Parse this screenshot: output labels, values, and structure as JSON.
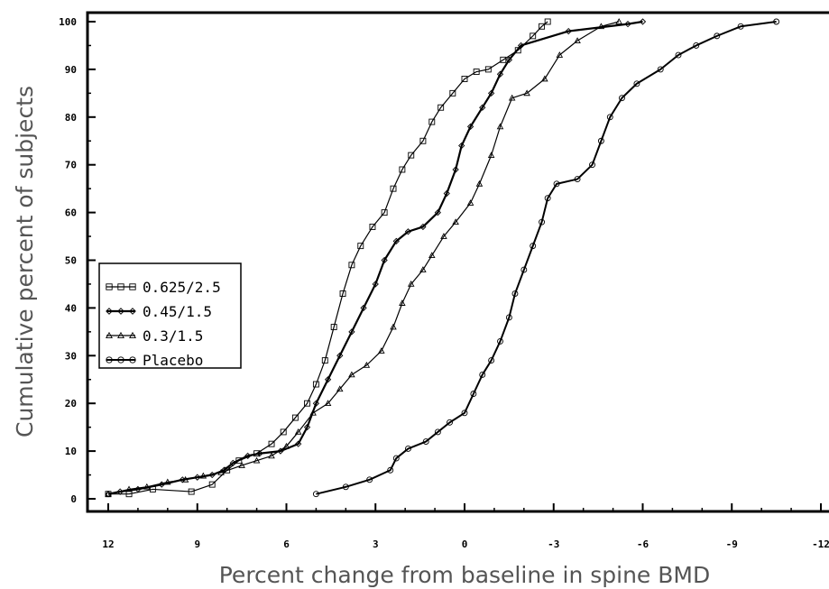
{
  "chart_data": {
    "type": "line",
    "title": "",
    "xlabel": "Percent change from baseline in spine BMD",
    "ylabel": "Cumulative percent of subjects",
    "xlim": [
      12,
      -12
    ],
    "ylim": [
      0,
      100
    ],
    "x_reversed": true,
    "xticks": [
      12,
      9,
      6,
      3,
      0,
      -3,
      -6,
      -9,
      -12
    ],
    "xtick_labels": [
      "12",
      "9",
      "6",
      "3",
      "0",
      "-3",
      "-6",
      "-9",
      "-12"
    ],
    "yticks": [
      0,
      10,
      20,
      30,
      40,
      50,
      60,
      70,
      80,
      90,
      100
    ],
    "ytick_labels": [
      "0",
      "10",
      "20",
      "30",
      "40",
      "50",
      "60",
      "70",
      "80",
      "90",
      "100"
    ],
    "grid": false,
    "legend_position": "left-middle",
    "series": [
      {
        "name": "0.625/2.5",
        "marker": "square",
        "points": [
          [
            12,
            1
          ],
          [
            11.3,
            1
          ],
          [
            10.5,
            2
          ],
          [
            9.2,
            1.5
          ],
          [
            8.5,
            3
          ],
          [
            8,
            6
          ],
          [
            7.6,
            8
          ],
          [
            7,
            9.5
          ],
          [
            6.5,
            11.5
          ],
          [
            6.1,
            14
          ],
          [
            5.7,
            17
          ],
          [
            5.3,
            20
          ],
          [
            5,
            24
          ],
          [
            4.7,
            29
          ],
          [
            4.4,
            36
          ],
          [
            4.1,
            43
          ],
          [
            3.8,
            49
          ],
          [
            3.5,
            53
          ],
          [
            3.1,
            57
          ],
          [
            2.7,
            60
          ],
          [
            2.4,
            65
          ],
          [
            2.1,
            69
          ],
          [
            1.8,
            72
          ],
          [
            1.4,
            75
          ],
          [
            1.1,
            79
          ],
          [
            0.8,
            82
          ],
          [
            0.4,
            85
          ],
          [
            0,
            88
          ],
          [
            -0.4,
            89.5
          ],
          [
            -0.8,
            90
          ],
          [
            -1.3,
            92
          ],
          [
            -1.8,
            94
          ],
          [
            -2.3,
            97
          ],
          [
            -2.6,
            99
          ],
          [
            -2.8,
            100
          ]
        ]
      },
      {
        "name": "0.45/1.5",
        "marker": "diamond",
        "points": [
          [
            12,
            1
          ],
          [
            11.6,
            1.5
          ],
          [
            11,
            2
          ],
          [
            10.2,
            3
          ],
          [
            9.5,
            4
          ],
          [
            9,
            4.5
          ],
          [
            8.5,
            5
          ],
          [
            8.1,
            6
          ],
          [
            7.8,
            7.5
          ],
          [
            7.3,
            9
          ],
          [
            6.9,
            9.5
          ],
          [
            6.2,
            10
          ],
          [
            5.6,
            11.5
          ],
          [
            5.3,
            15
          ],
          [
            5,
            20
          ],
          [
            4.6,
            25
          ],
          [
            4.2,
            30
          ],
          [
            3.8,
            35
          ],
          [
            3.4,
            40
          ],
          [
            3,
            45
          ],
          [
            2.7,
            50
          ],
          [
            2.3,
            54
          ],
          [
            1.9,
            56
          ],
          [
            1.4,
            57
          ],
          [
            0.9,
            60
          ],
          [
            0.6,
            64
          ],
          [
            0.3,
            69
          ],
          [
            0.1,
            74
          ],
          [
            -0.2,
            78
          ],
          [
            -0.6,
            82
          ],
          [
            -0.9,
            85
          ],
          [
            -1.2,
            89
          ],
          [
            -1.5,
            92
          ],
          [
            -1.9,
            95
          ],
          [
            -3.5,
            98
          ],
          [
            -5.5,
            99.5
          ],
          [
            -6,
            100
          ]
        ]
      },
      {
        "name": "0.3/1.5",
        "marker": "triangle",
        "points": [
          [
            12,
            1
          ],
          [
            11.3,
            2
          ],
          [
            10.7,
            2.5
          ],
          [
            10,
            3.5
          ],
          [
            9.4,
            4
          ],
          [
            8.8,
            4.8
          ],
          [
            8.2,
            5.5
          ],
          [
            7.5,
            7
          ],
          [
            7,
            8
          ],
          [
            6.5,
            9
          ],
          [
            6,
            11
          ],
          [
            5.6,
            14
          ],
          [
            5.1,
            18
          ],
          [
            4.6,
            20
          ],
          [
            4.2,
            23
          ],
          [
            3.8,
            26
          ],
          [
            3.3,
            28
          ],
          [
            2.8,
            31
          ],
          [
            2.4,
            36
          ],
          [
            2.1,
            41
          ],
          [
            1.8,
            45
          ],
          [
            1.4,
            48
          ],
          [
            1.1,
            51
          ],
          [
            0.7,
            55
          ],
          [
            0.3,
            58
          ],
          [
            -0.2,
            62
          ],
          [
            -0.5,
            66
          ],
          [
            -0.9,
            72
          ],
          [
            -1.2,
            78
          ],
          [
            -1.6,
            84
          ],
          [
            -2.1,
            85
          ],
          [
            -2.7,
            88
          ],
          [
            -3.2,
            93
          ],
          [
            -3.8,
            96
          ],
          [
            -4.6,
            99
          ],
          [
            -5.2,
            100
          ]
        ]
      },
      {
        "name": "Placebo",
        "marker": "circle",
        "points": [
          [
            5,
            1
          ],
          [
            4,
            2.5
          ],
          [
            3.2,
            4
          ],
          [
            2.5,
            6
          ],
          [
            2.3,
            8.5
          ],
          [
            1.9,
            10.5
          ],
          [
            1.3,
            12
          ],
          [
            0.9,
            14
          ],
          [
            0.5,
            16
          ],
          [
            0,
            18
          ],
          [
            -0.3,
            22
          ],
          [
            -0.6,
            26
          ],
          [
            -0.9,
            29
          ],
          [
            -1.2,
            33
          ],
          [
            -1.5,
            38
          ],
          [
            -1.7,
            43
          ],
          [
            -2,
            48
          ],
          [
            -2.3,
            53
          ],
          [
            -2.6,
            58
          ],
          [
            -2.8,
            63
          ],
          [
            -3.1,
            66
          ],
          [
            -3.8,
            67
          ],
          [
            -4.3,
            70
          ],
          [
            -4.6,
            75
          ],
          [
            -4.9,
            80
          ],
          [
            -5.3,
            84
          ],
          [
            -5.8,
            87
          ],
          [
            -6.6,
            90
          ],
          [
            -7.2,
            93
          ],
          [
            -7.8,
            95
          ],
          [
            -8.5,
            97
          ],
          [
            -9.3,
            99
          ],
          [
            -10.5,
            100
          ]
        ]
      }
    ]
  }
}
